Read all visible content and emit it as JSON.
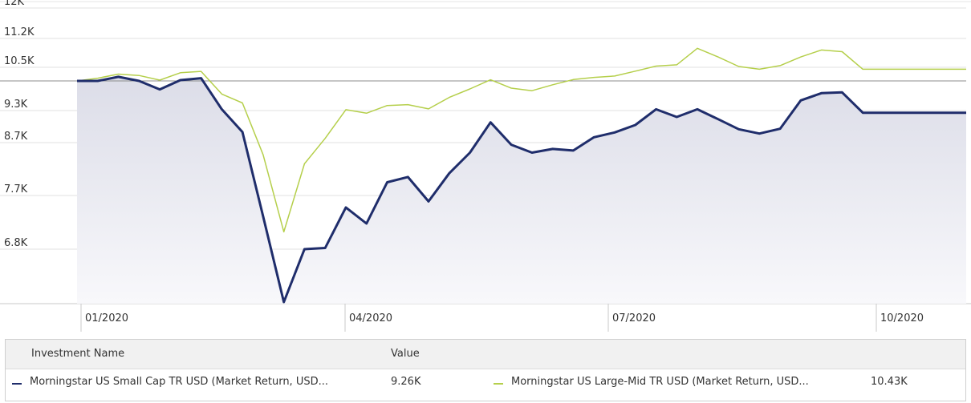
{
  "chart_data": {
    "type": "line",
    "x": [
      "2019-12-31",
      "2020-01-07",
      "2020-01-14",
      "2020-01-21",
      "2020-01-28",
      "2020-02-04",
      "2020-02-11",
      "2020-02-18",
      "2020-02-25",
      "2020-03-03",
      "2020-03-10",
      "2020-03-17",
      "2020-03-24",
      "2020-03-31",
      "2020-04-07",
      "2020-04-14",
      "2020-04-21",
      "2020-04-28",
      "2020-05-05",
      "2020-05-12",
      "2020-05-19",
      "2020-05-26",
      "2020-06-02",
      "2020-06-09",
      "2020-06-16",
      "2020-06-23",
      "2020-06-30",
      "2020-07-07",
      "2020-07-14",
      "2020-07-21",
      "2020-07-28",
      "2020-08-04",
      "2020-08-11",
      "2020-08-18",
      "2020-08-25",
      "2020-09-01",
      "2020-09-08",
      "2020-09-15",
      "2020-09-22",
      "2020-09-29",
      "2020-10-06",
      "2020-10-13",
      "2020-10-20",
      "2020-10-27"
    ],
    "series": [
      {
        "name": "Morningstar US Small Cap TR USD (Market Return, USD...",
        "color": "#1f2d6b",
        "values": [
          10000,
          10000,
          10150,
          10000,
          9800,
          10030,
          10100,
          9330,
          8900,
          7350,
          5810,
          6800,
          6820,
          7500,
          7230,
          7950,
          8050,
          7600,
          8120,
          8510,
          9080,
          8660,
          8510,
          8580,
          8550,
          8800,
          8890,
          9030,
          9330,
          9180,
          9330,
          9140,
          8950,
          8870,
          8960,
          9540,
          9710,
          9730,
          9260,
          9260,
          9260,
          9260,
          9260,
          9260
        ]
      },
      {
        "name": "Morningstar US Large-Mid TR USD (Market Return, USD...",
        "color": "#b5cf4b",
        "values": [
          10000,
          10100,
          10250,
          10200,
          10030,
          10300,
          10350,
          9690,
          9480,
          8470,
          7090,
          8300,
          8780,
          9320,
          9250,
          9420,
          9440,
          9340,
          9610,
          9810,
          10040,
          9830,
          9770,
          9910,
          10050,
          10130,
          10180,
          10360,
          10530,
          10560,
          10960,
          10750,
          10520,
          10430,
          10540,
          10750,
          10920,
          10880,
          10430,
          10430,
          10430,
          10430,
          10430,
          10430
        ]
      }
    ],
    "ylim": [
      5810,
      12000
    ],
    "ytick_labels": [
      "12K",
      "11.2K",
      "10.5K",
      "9.3K",
      "8.7K",
      "7.7K",
      "6.8K"
    ],
    "ytick_values": [
      12000,
      11200,
      10500,
      9300,
      8700,
      7700,
      6800
    ],
    "baseline": 10000,
    "xtick_labels": [
      "01/2020",
      "04/2020",
      "07/2020",
      "10/2020"
    ],
    "grid": true,
    "area_under_series": "Morningstar US Small Cap TR USD (Market Return, USD..."
  },
  "legend": {
    "header_name": "Investment Name",
    "header_value": "Value",
    "rows": [
      {
        "name": "Morningstar US Small Cap TR USD (Market Return, USD...",
        "value": "9.26K",
        "color": "#1f2d6b"
      },
      {
        "name": "Morningstar US Large-Mid TR USD (Market Return, USD...",
        "value": "10.43K",
        "color": "#b5cf4b"
      }
    ]
  }
}
